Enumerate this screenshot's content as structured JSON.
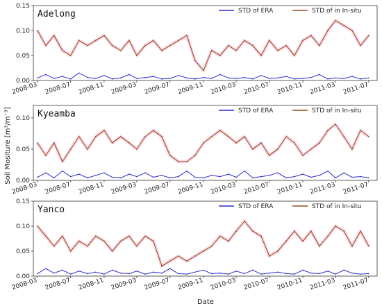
{
  "xlabel": "Date",
  "ylabel": "Soil Mositure [m³/m⁻³]",
  "colors": {
    "era": "#2a2ad0",
    "insitu": "#9b4a1e",
    "insitu_halo": "#f7c6dc"
  },
  "chart_data": [
    {
      "type": "line",
      "title": "Adelong",
      "ylim": [
        0,
        0.15
      ],
      "yticks": [
        "0.00",
        "0.05",
        "0.10",
        "0.15"
      ],
      "ytick_values": [
        0,
        0.05,
        0.1,
        0.15
      ],
      "xlim": [
        "2008-02-15",
        "2011-08-01"
      ],
      "xticks": [
        "2008-03",
        "2008-07",
        "2008-11",
        "2009-03",
        "2009-07",
        "2009-11",
        "2010-03",
        "2010-07",
        "2010-11",
        "2011-03",
        "2011-07"
      ],
      "legend_position": "top-right",
      "series": [
        {
          "name": "STD of ERA",
          "x": [
            "2008-03-01",
            "2008-04-01",
            "2008-05-01",
            "2008-06-01",
            "2008-07-01",
            "2008-08-01",
            "2008-09-01",
            "2008-10-01",
            "2008-11-01",
            "2008-12-01",
            "2009-01-01",
            "2009-02-01",
            "2009-03-01",
            "2009-04-01",
            "2009-05-01",
            "2009-06-01",
            "2009-07-01",
            "2009-08-01",
            "2009-09-01",
            "2009-10-01",
            "2009-11-01",
            "2009-12-01",
            "2010-01-01",
            "2010-02-01",
            "2010-03-01",
            "2010-04-01",
            "2010-05-01",
            "2010-06-01",
            "2010-07-01",
            "2010-08-01",
            "2010-09-01",
            "2010-10-01",
            "2010-11-01",
            "2010-12-01",
            "2011-01-01",
            "2011-02-01",
            "2011-03-01",
            "2011-04-01",
            "2011-05-01",
            "2011-06-01",
            "2011-07-01"
          ],
          "y": [
            0.005,
            0.012,
            0.004,
            0.008,
            0.003,
            0.015,
            0.006,
            0.004,
            0.01,
            0.003,
            0.005,
            0.012,
            0.004,
            0.006,
            0.008,
            0.003,
            0.004,
            0.01,
            0.005,
            0.003,
            0.006,
            0.004,
            0.012,
            0.005,
            0.004,
            0.006,
            0.003,
            0.01,
            0.004,
            0.005,
            0.008,
            0.003,
            0.004,
            0.006,
            0.012,
            0.003,
            0.005,
            0.004,
            0.008,
            0.003,
            0.005
          ]
        },
        {
          "name": "STD of in In-situ",
          "x": [
            "2008-03-01",
            "2008-04-01",
            "2008-05-01",
            "2008-06-01",
            "2008-07-01",
            "2008-08-01",
            "2008-09-01",
            "2008-10-01",
            "2008-11-01",
            "2008-12-01",
            "2009-01-01",
            "2009-02-01",
            "2009-03-01",
            "2009-04-01",
            "2009-05-01",
            "2009-06-01",
            "2009-07-01",
            "2009-08-01",
            "2009-09-01",
            "2009-10-01",
            "2009-11-01",
            "2009-12-01",
            "2010-01-01",
            "2010-02-01",
            "2010-03-01",
            "2010-04-01",
            "2010-05-01",
            "2010-06-01",
            "2010-07-01",
            "2010-08-01",
            "2010-09-01",
            "2010-10-01",
            "2010-11-01",
            "2010-12-01",
            "2011-01-01",
            "2011-02-01",
            "2011-03-01",
            "2011-04-01",
            "2011-05-01",
            "2011-06-01",
            "2011-07-01"
          ],
          "y": [
            0.1,
            0.07,
            0.09,
            0.06,
            0.05,
            0.08,
            0.07,
            0.08,
            0.09,
            0.07,
            0.06,
            0.08,
            0.05,
            0.07,
            0.08,
            0.06,
            0.07,
            0.08,
            0.09,
            0.04,
            0.02,
            0.06,
            0.05,
            0.07,
            0.06,
            0.08,
            0.07,
            0.05,
            0.08,
            0.06,
            0.07,
            0.05,
            0.08,
            0.09,
            0.07,
            0.1,
            0.12,
            0.11,
            0.1,
            0.07,
            0.09
          ]
        }
      ]
    },
    {
      "type": "line",
      "title": "Kyeamba",
      "ylim": [
        0,
        0.12
      ],
      "yticks": [
        "0.00",
        "0.05",
        "0.10"
      ],
      "ytick_values": [
        0,
        0.05,
        0.1
      ],
      "xlim": [
        "2008-02-15",
        "2011-08-01"
      ],
      "xticks": [
        "2008-03",
        "2008-07",
        "2008-11",
        "2009-03",
        "2009-07",
        "2009-11",
        "2010-03",
        "2010-07",
        "2010-11",
        "2011-03",
        "2011-07"
      ],
      "legend_position": "top-right",
      "series": [
        {
          "name": "STD of ERA",
          "x": [
            "2008-03-01",
            "2008-04-01",
            "2008-05-01",
            "2008-06-01",
            "2008-07-01",
            "2008-08-01",
            "2008-09-01",
            "2008-10-01",
            "2008-11-01",
            "2008-12-01",
            "2009-01-01",
            "2009-02-01",
            "2009-03-01",
            "2009-04-01",
            "2009-05-01",
            "2009-06-01",
            "2009-07-01",
            "2009-08-01",
            "2009-09-01",
            "2009-10-01",
            "2009-11-01",
            "2009-12-01",
            "2010-01-01",
            "2010-02-01",
            "2010-03-01",
            "2010-04-01",
            "2010-05-01",
            "2010-06-01",
            "2010-07-01",
            "2010-08-01",
            "2010-09-01",
            "2010-10-01",
            "2010-11-01",
            "2010-12-01",
            "2011-01-01",
            "2011-02-01",
            "2011-03-01",
            "2011-04-01",
            "2011-05-01",
            "2011-06-01",
            "2011-07-01"
          ],
          "y": [
            0.005,
            0.012,
            0.004,
            0.015,
            0.006,
            0.01,
            0.004,
            0.008,
            0.012,
            0.005,
            0.004,
            0.01,
            0.006,
            0.012,
            0.005,
            0.008,
            0.004,
            0.006,
            0.015,
            0.005,
            0.004,
            0.008,
            0.006,
            0.01,
            0.005,
            0.015,
            0.004,
            0.006,
            0.008,
            0.012,
            0.004,
            0.006,
            0.01,
            0.005,
            0.008,
            0.015,
            0.004,
            0.012,
            0.005,
            0.006,
            0.004
          ]
        },
        {
          "name": "STD of in In-situ",
          "x": [
            "2008-03-01",
            "2008-04-01",
            "2008-05-01",
            "2008-06-01",
            "2008-07-01",
            "2008-08-01",
            "2008-09-01",
            "2008-10-01",
            "2008-11-01",
            "2008-12-01",
            "2009-01-01",
            "2009-02-01",
            "2009-03-01",
            "2009-04-01",
            "2009-05-01",
            "2009-06-01",
            "2009-07-01",
            "2009-08-01",
            "2009-09-01",
            "2009-10-01",
            "2009-11-01",
            "2009-12-01",
            "2010-01-01",
            "2010-02-01",
            "2010-03-01",
            "2010-04-01",
            "2010-05-01",
            "2010-06-01",
            "2010-07-01",
            "2010-08-01",
            "2010-09-01",
            "2010-10-01",
            "2010-11-01",
            "2010-12-01",
            "2011-01-01",
            "2011-02-01",
            "2011-03-01",
            "2011-04-01",
            "2011-05-01",
            "2011-06-01",
            "2011-07-01"
          ],
          "y": [
            0.06,
            0.04,
            0.06,
            0.03,
            0.05,
            0.07,
            0.05,
            0.07,
            0.08,
            0.06,
            0.07,
            0.06,
            0.05,
            0.07,
            0.08,
            0.07,
            0.04,
            0.03,
            0.03,
            0.04,
            0.06,
            0.07,
            0.08,
            0.07,
            0.06,
            0.07,
            0.05,
            0.06,
            0.04,
            0.05,
            0.07,
            0.06,
            0.04,
            0.05,
            0.06,
            0.08,
            0.09,
            0.07,
            0.05,
            0.08,
            0.07
          ]
        }
      ]
    },
    {
      "type": "line",
      "title": "Yanco",
      "ylim": [
        0,
        0.15
      ],
      "yticks": [
        "0.00",
        "0.05",
        "0.10",
        "0.15"
      ],
      "ytick_values": [
        0,
        0.05,
        0.1,
        0.15
      ],
      "xlim": [
        "2008-02-15",
        "2011-08-01"
      ],
      "xticks": [
        "2008-03",
        "2008-07",
        "2008-11",
        "2009-03",
        "2009-07",
        "2009-11",
        "2010-03",
        "2010-07",
        "2010-11",
        "2011-03",
        "2011-07"
      ],
      "legend_position": "top-right",
      "series": [
        {
          "name": "STD of ERA",
          "x": [
            "2008-03-01",
            "2008-04-01",
            "2008-05-01",
            "2008-06-01",
            "2008-07-01",
            "2008-08-01",
            "2008-09-01",
            "2008-10-01",
            "2008-11-01",
            "2008-12-01",
            "2009-01-01",
            "2009-02-01",
            "2009-03-01",
            "2009-04-01",
            "2009-05-01",
            "2009-06-01",
            "2009-07-01",
            "2009-08-01",
            "2009-09-01",
            "2009-10-01",
            "2009-11-01",
            "2009-12-01",
            "2010-01-01",
            "2010-02-01",
            "2010-03-01",
            "2010-04-01",
            "2010-05-01",
            "2010-06-01",
            "2010-07-01",
            "2010-08-01",
            "2010-09-01",
            "2010-10-01",
            "2010-11-01",
            "2010-12-01",
            "2011-01-01",
            "2011-02-01",
            "2011-03-01",
            "2011-04-01",
            "2011-05-01",
            "2011-06-01",
            "2011-07-01"
          ],
          "y": [
            0.005,
            0.015,
            0.006,
            0.012,
            0.004,
            0.01,
            0.005,
            0.008,
            0.004,
            0.012,
            0.006,
            0.005,
            0.01,
            0.004,
            0.008,
            0.006,
            0.015,
            0.005,
            0.004,
            0.008,
            0.012,
            0.005,
            0.006,
            0.004,
            0.01,
            0.005,
            0.012,
            0.004,
            0.006,
            0.008,
            0.005,
            0.004,
            0.012,
            0.006,
            0.005,
            0.01,
            0.004,
            0.012,
            0.006,
            0.004,
            0.005
          ]
        },
        {
          "name": "STD of in In-situ",
          "x": [
            "2008-03-01",
            "2008-04-01",
            "2008-05-01",
            "2008-06-01",
            "2008-07-01",
            "2008-08-01",
            "2008-09-01",
            "2008-10-01",
            "2008-11-01",
            "2008-12-01",
            "2009-01-01",
            "2009-02-01",
            "2009-03-01",
            "2009-04-01",
            "2009-05-01",
            "2009-06-01",
            "2009-07-01",
            "2009-08-01",
            "2009-09-01",
            "2009-10-01",
            "2009-11-01",
            "2009-12-01",
            "2010-01-01",
            "2010-02-01",
            "2010-03-01",
            "2010-04-01",
            "2010-05-01",
            "2010-06-01",
            "2010-07-01",
            "2010-08-01",
            "2010-09-01",
            "2010-10-01",
            "2010-11-01",
            "2010-12-01",
            "2011-01-01",
            "2011-02-01",
            "2011-03-01",
            "2011-04-01",
            "2011-05-01",
            "2011-06-01",
            "2011-07-01"
          ],
          "y": [
            0.1,
            0.08,
            0.06,
            0.08,
            0.05,
            0.07,
            0.06,
            0.08,
            0.07,
            0.05,
            0.07,
            0.08,
            0.06,
            0.08,
            0.07,
            0.02,
            0.03,
            0.04,
            0.03,
            0.04,
            0.05,
            0.06,
            0.08,
            0.07,
            0.09,
            0.11,
            0.09,
            0.08,
            0.04,
            0.05,
            0.07,
            0.09,
            0.07,
            0.09,
            0.06,
            0.08,
            0.1,
            0.09,
            0.06,
            0.09,
            0.06
          ]
        }
      ]
    }
  ]
}
